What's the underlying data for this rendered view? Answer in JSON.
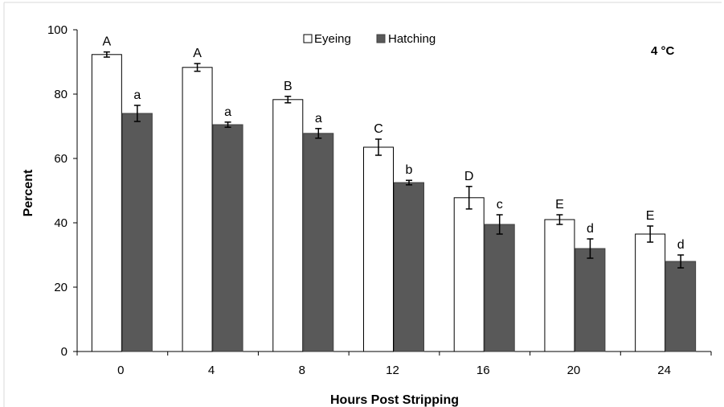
{
  "chart_data": {
    "type": "bar",
    "title": "",
    "annotation": "4 °C",
    "xlabel": "Hours Post Stripping",
    "ylabel": "Percent",
    "ylim": [
      0,
      100
    ],
    "yticks": [
      0,
      20,
      40,
      60,
      80,
      100
    ],
    "categories": [
      "0",
      "4",
      "8",
      "12",
      "16",
      "20",
      "24"
    ],
    "legend_position": "top-center",
    "grid": false,
    "series": [
      {
        "name": "Eyeing",
        "color": "#ffffff",
        "values": [
          92.3,
          88.3,
          78.3,
          63.5,
          47.8,
          41.0,
          36.5
        ],
        "errors": [
          0.8,
          1.2,
          1.0,
          2.5,
          3.5,
          1.5,
          2.5
        ],
        "letters": [
          "A",
          "A",
          "B",
          "C",
          "D",
          "E",
          "E"
        ]
      },
      {
        "name": "Hatching",
        "color": "#595959",
        "values": [
          74.0,
          70.5,
          67.8,
          52.5,
          39.5,
          32.0,
          28.0
        ],
        "errors": [
          2.5,
          0.8,
          1.5,
          0.7,
          3.0,
          3.0,
          2.0
        ],
        "letters": [
          "a",
          "a",
          "a",
          "b",
          "c",
          "d",
          "d"
        ]
      }
    ]
  }
}
